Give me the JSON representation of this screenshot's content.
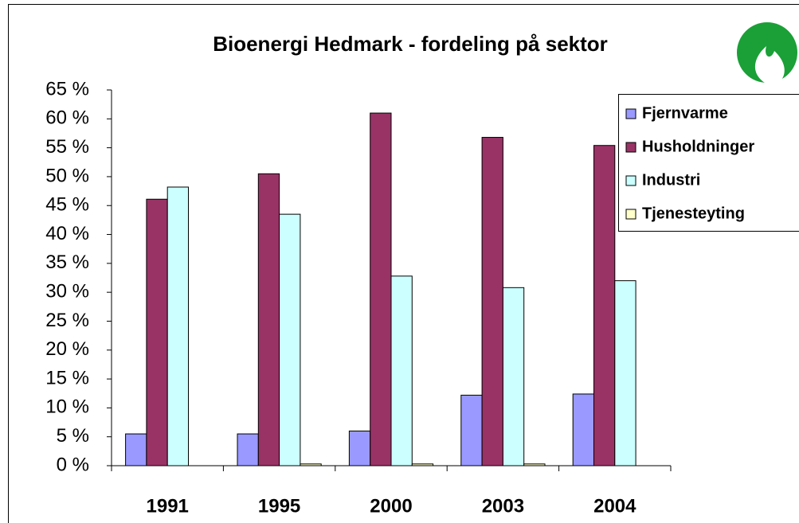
{
  "chart_data": {
    "type": "bar",
    "title": "Bioenergi Hedmark - fordeling på sektor",
    "categories": [
      "1991",
      "1995",
      "2000",
      "2003",
      "2004"
    ],
    "series": [
      {
        "name": "Fjernvarme",
        "color": "#9999ff",
        "values": [
          5.5,
          5.5,
          6,
          12.2,
          12.4
        ]
      },
      {
        "name": "Husholdninger",
        "color": "#993366",
        "values": [
          46.1,
          50.5,
          61,
          56.8,
          55.4
        ]
      },
      {
        "name": "Industri",
        "color": "#ccffff",
        "values": [
          48.2,
          43.5,
          32.8,
          30.8,
          32
        ]
      },
      {
        "name": "Tjenesteyting",
        "color": "#ffffcc",
        "values": [
          0,
          0.3,
          0.3,
          0.3,
          0
        ]
      }
    ],
    "ylim": [
      0,
      65
    ],
    "yticks": [
      {
        "value": 0,
        "label": "0 %"
      },
      {
        "value": 5,
        "label": "5 %"
      },
      {
        "value": 10,
        "label": "10 %"
      },
      {
        "value": 15,
        "label": "15 %"
      },
      {
        "value": 20,
        "label": "20 %"
      },
      {
        "value": 25,
        "label": "25 %"
      },
      {
        "value": 30,
        "label": "30 %"
      },
      {
        "value": 35,
        "label": "35 %"
      },
      {
        "value": 40,
        "label": "40 %"
      },
      {
        "value": 45,
        "label": "45 %"
      },
      {
        "value": 50,
        "label": "50 %"
      },
      {
        "value": 55,
        "label": "55 %"
      },
      {
        "value": 60,
        "label": "60 %"
      },
      {
        "value": 65,
        "label": "65 %"
      }
    ],
    "grid": false,
    "legend": "right"
  }
}
